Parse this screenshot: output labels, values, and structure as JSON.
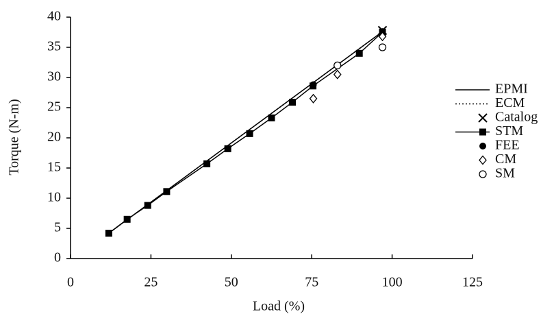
{
  "chart_data": {
    "type": "line",
    "x_label": "Load (%)",
    "y_label": "Torque (N-m)",
    "xlim": [
      0,
      125
    ],
    "ylim": [
      0,
      40
    ],
    "xticks": [
      0,
      25,
      50,
      75,
      100,
      125
    ],
    "yticks": [
      0,
      5,
      10,
      15,
      20,
      25,
      30,
      35,
      40
    ],
    "legend": "right",
    "series": [
      {
        "name": "EPMI",
        "color": "#000000",
        "linestyle": "solid",
        "marker": "none",
        "x": [
          11.9,
          97
        ],
        "values": [
          4.2,
          37.6
        ]
      },
      {
        "name": "ECM",
        "color": "#000000",
        "linestyle": "dotted",
        "marker": "none",
        "x": [
          11.9,
          97
        ],
        "values": [
          4.2,
          37.6
        ]
      },
      {
        "name": "Catalog",
        "color": "#000000",
        "linestyle": "none",
        "marker": "x",
        "x": [
          97
        ],
        "values": [
          37.8
        ]
      },
      {
        "name": "STM",
        "color": "#000000",
        "linestyle": "solid",
        "marker": "square",
        "x": [
          11.9,
          17.6,
          24,
          29.9,
          42.4,
          48.9,
          55.7,
          62.5,
          69,
          75.4,
          89.8,
          97
        ],
        "values": [
          4.2,
          6.5,
          8.8,
          11.1,
          15.7,
          18.2,
          20.7,
          23.3,
          25.9,
          28.6,
          34,
          37.5
        ]
      },
      {
        "name": "FEE",
        "color": "#000000",
        "linestyle": "none",
        "marker": "circle-filled",
        "x": [
          75.5,
          97
        ],
        "values": [
          28.8,
          37.6
        ]
      },
      {
        "name": "CM",
        "color": "#000000",
        "linestyle": "none",
        "marker": "diamond",
        "x": [
          75.5,
          83,
          97
        ],
        "values": [
          26.5,
          30.5,
          36.8
        ]
      },
      {
        "name": "SM",
        "color": "#000000",
        "linestyle": "none",
        "marker": "circle",
        "x": [
          83,
          97
        ],
        "values": [
          32,
          35
        ]
      }
    ]
  }
}
